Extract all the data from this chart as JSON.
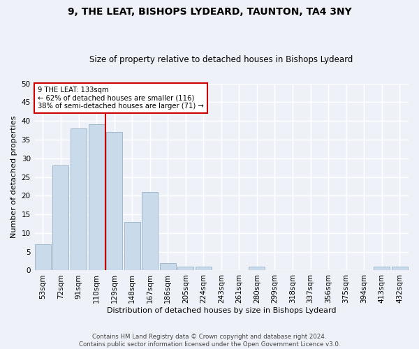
{
  "title": "9, THE LEAT, BISHOPS LYDEARD, TAUNTON, TA4 3NY",
  "subtitle": "Size of property relative to detached houses in Bishops Lydeard",
  "xlabel": "Distribution of detached houses by size in Bishops Lydeard",
  "ylabel": "Number of detached properties",
  "bar_labels": [
    "53sqm",
    "72sqm",
    "91sqm",
    "110sqm",
    "129sqm",
    "148sqm",
    "167sqm",
    "186sqm",
    "205sqm",
    "224sqm",
    "243sqm",
    "261sqm",
    "280sqm",
    "299sqm",
    "318sqm",
    "337sqm",
    "356sqm",
    "375sqm",
    "394sqm",
    "413sqm",
    "432sqm"
  ],
  "bar_values": [
    7,
    28,
    38,
    39,
    37,
    13,
    21,
    2,
    1,
    1,
    0,
    0,
    1,
    0,
    0,
    0,
    0,
    0,
    0,
    1,
    1
  ],
  "bar_color": "#c9daea",
  "bar_edge_color": "#a0b8cc",
  "property_line_bin": 4,
  "property_line_label": "9 THE LEAT: 133sqm",
  "annotation_line1": "← 62% of detached houses are smaller (116)",
  "annotation_line2": "38% of semi-detached houses are larger (71) →",
  "annotation_box_color": "#ffffff",
  "annotation_box_edge_color": "#cc0000",
  "vline_color": "#cc0000",
  "ylim": [
    0,
    50
  ],
  "yticks": [
    0,
    5,
    10,
    15,
    20,
    25,
    30,
    35,
    40,
    45,
    50
  ],
  "footer_line1": "Contains HM Land Registry data © Crown copyright and database right 2024.",
  "footer_line2": "Contains public sector information licensed under the Open Government Licence v3.0.",
  "background_color": "#eef2f8",
  "grid_color": "#ffffff"
}
